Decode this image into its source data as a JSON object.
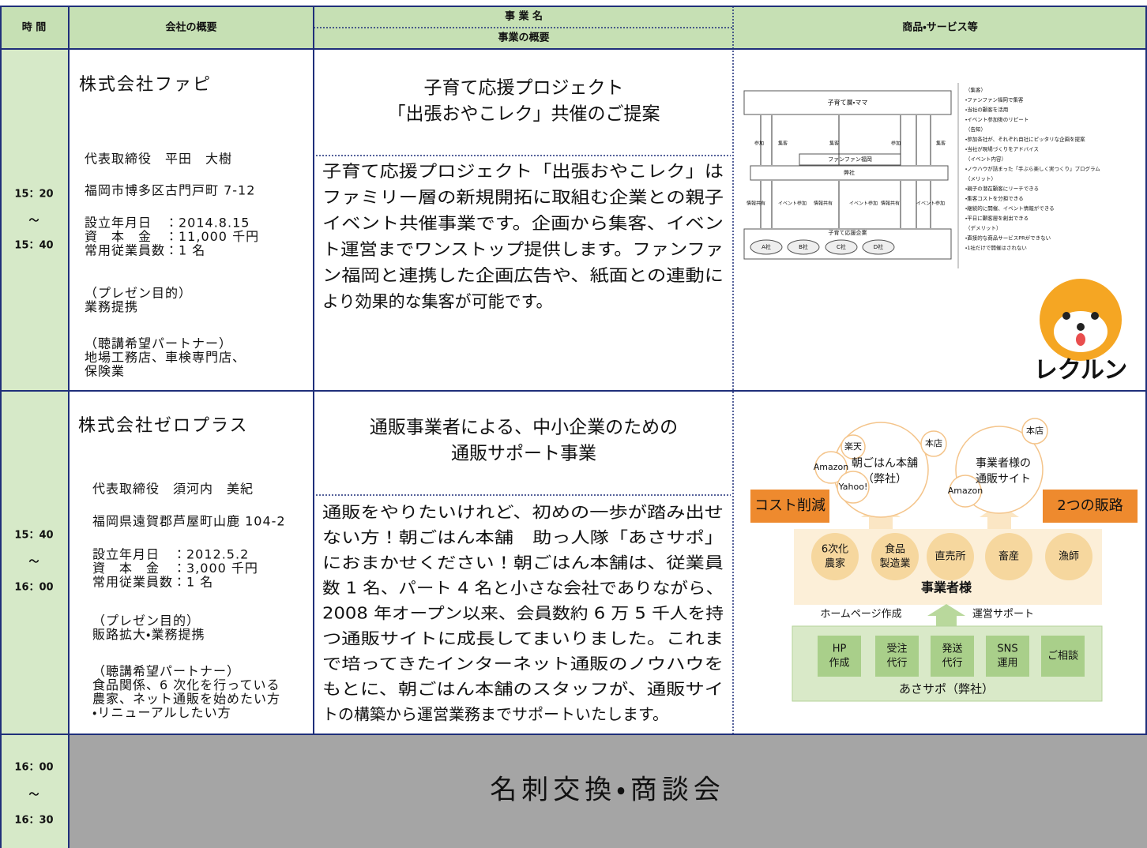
{
  "header": {
    "time": "時 間",
    "company": "会社の概要",
    "business_name": "事 業 名",
    "business_summary": "事業の概要",
    "products": "商品・サービス等"
  },
  "rows": [
    {
      "time": [
        "15：20",
        "～",
        "15：40"
      ],
      "company": {
        "name": "株式会社ファピ",
        "details": [
          [
            "代表取締役　平田　大樹"
          ],
          [
            "福岡市博多区古門戸町 7-12"
          ],
          [
            "設立年月日　：2014.8.15",
            "資　本　金　：11,000 千円",
            "常用従業員数：1 名"
          ],
          [
            "（プレゼン目的）",
            "業務提携"
          ],
          [
            "（聴講希望パートナー）",
            "地場工務店、車検専門店、",
            "保険業"
          ]
        ]
      },
      "business": {
        "name": [
          "子育て応援プロジェクト",
          "「出張おやこレク」共催のご提案"
        ],
        "summary": [
          "子育て応援プロジェクト「出張おやこレク」は",
          "ファミリー層の新規開拓に取組む企業との親子",
          "イベント共催事業です。企画から集客、イベン",
          "ト運営までワンストップ提供します。ファンファ",
          "ン福岡と連携した企画広告や、紙面との連動に",
          "より効果的な集客が可能です。"
        ]
      },
      "product": {
        "top": "子育て層・ママ",
        "middle": "ファンファン福岡",
        "company": "弊社",
        "bottom": "子育て応援企業",
        "arrows": [
          "参加",
          "集客",
          "集客",
          "参加",
          "集客"
        ],
        "arrows2": [
          "情報共有",
          "イベント参加",
          "情報共有",
          "イベント参加",
          "情報共有",
          "イベント参加"
        ],
        "companies": [
          "A社",
          "B社",
          "C社",
          "D社"
        ],
        "notes": [
          "（集客）",
          "・ファンファン福岡で集客",
          "・当社の顧客を活用",
          "・イベント参加後のリピート",
          "（告知）",
          "・参加各社が、それぞれ自社にピッタリな企画を提案",
          "・当社が現場づくりをアドバイス",
          "（イベント内容）",
          "・ノウハウが詰まった「手ぶら楽しく実つくり」プログラム",
          "（メリット）",
          "・親子の潜在顧客にリーチできる",
          "・集客コストを分担できる",
          "・継続的に開催、イベント情報ができる",
          "・平日に顧客層を創出できる",
          "（デメリット）",
          "・直接的な商品サービスPRができない",
          "・1社だけで開催はされない"
        ],
        "logo": "レクルン"
      }
    },
    {
      "time": [
        "15：40",
        "～",
        "16：00"
      ],
      "company": {
        "name": "株式会社ゼロプラス",
        "details": [
          [
            "代表取締役　須河内　美紀"
          ],
          [
            "福岡県遠賀郡芦屋町山鹿 104-2"
          ],
          [
            "設立年月日　：2012.5.2",
            "資　本　金　：3,000 千円",
            "常用従業員数：1 名"
          ],
          [
            "（プレゼン目的）",
            "販路拡大・業務提携"
          ],
          [
            "（聴講希望パートナー）",
            "食品関係、6 次化を行っている",
            "農家、ネット通販を始めたい方",
            "・リニューアルしたい方"
          ]
        ]
      },
      "business": {
        "name": [
          "通販事業者による、中小企業のための",
          "通販サポート事業"
        ],
        "summary": [
          "通販をやりたいけれど、初めの一歩が踏み出せ",
          "ない方！朝ごはん本舗　助っ人隊「あさサポ」",
          "におまかせください！朝ごはん本舗は、従業員",
          "数 1 名、パート 4 名と小さな会社でありながら、",
          "2008 年オープン以来、会員数約 6 万 5 千人を持",
          "つ通販サイトに成長してまいりました。これま",
          "で培ってきたインターネット通販のノウハウを",
          "もとに、朝ごはん本舗のスタッフが、通販サイ",
          "トの構築から運営業務までサポートいたします。"
        ]
      },
      "product": {
        "channels": [
          {
            "name": [
              "朝ごはん本舗",
              "（弊社）"
            ],
            "tags": [
              "楽天",
              "本店",
              "Amazon",
              "Yahoo!"
            ]
          },
          {
            "name": [
              "事業者様の",
              "通販サイト"
            ],
            "tags": [
              "本店",
              "Amazon"
            ]
          }
        ],
        "left_label": "コスト削減",
        "right_label": "2つの販路",
        "producers": [
          [
            "6次化",
            "農家"
          ],
          [
            "食品",
            "製造業"
          ],
          [
            "直売所"
          ],
          [
            "畜産"
          ],
          [
            "漁師"
          ]
        ],
        "producers_label": "事業者様",
        "supports": [
          "ホームページ作成",
          "運営サポート"
        ],
        "services": [
          [
            "HP",
            "作成"
          ],
          [
            "受注",
            "代行"
          ],
          [
            "発送",
            "代行"
          ],
          [
            "SNS",
            "運用"
          ],
          [
            "ご相談"
          ]
        ],
        "provider": "あさサポ（弊社）"
      }
    }
  ],
  "closing": {
    "time": [
      "16：00",
      "～",
      "16：30"
    ],
    "title": "名刺交換・商談会"
  }
}
